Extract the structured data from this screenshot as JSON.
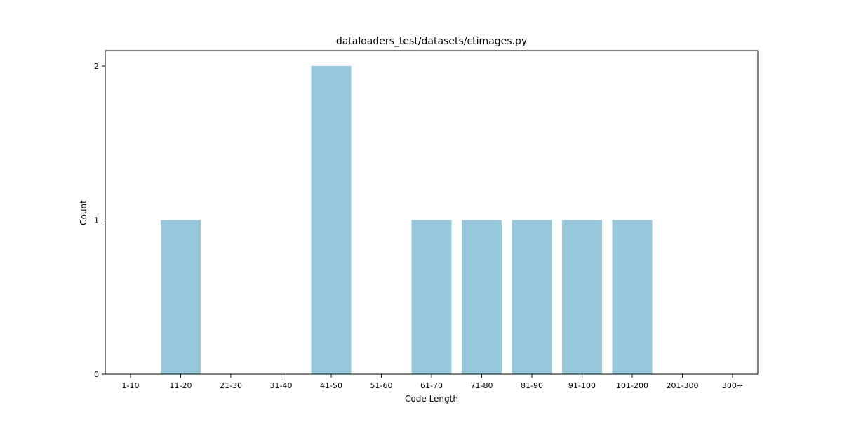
{
  "chart_data": {
    "type": "bar",
    "title": "dataloaders_test/datasets/ctimages.py",
    "xlabel": "Code Length",
    "ylabel": "Count",
    "categories": [
      "1-10",
      "11-20",
      "21-30",
      "31-40",
      "41-50",
      "51-60",
      "61-70",
      "71-80",
      "81-90",
      "91-100",
      "101-200",
      "201-300",
      "300+"
    ],
    "values": [
      0,
      1,
      0,
      0,
      2,
      0,
      1,
      1,
      1,
      1,
      1,
      0,
      0
    ],
    "yticks": [
      0,
      1,
      2
    ],
    "ylim": [
      0,
      2.1
    ],
    "grid": false,
    "legend": "none",
    "colors": {
      "bar": "#96c8dc",
      "axis": "#000000"
    }
  }
}
